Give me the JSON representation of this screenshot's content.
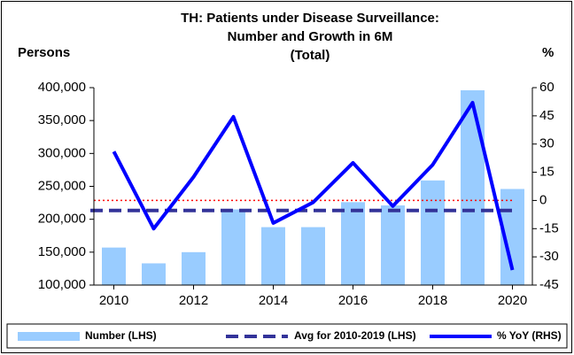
{
  "chart_data": {
    "type": "bar_line",
    "title": [
      "TH: Patients under Disease Surveillance:",
      "Number and Growth in 6M",
      "(Total)"
    ],
    "ylabel": "Persons",
    "y2label": "%",
    "x": [
      2010,
      2011,
      2012,
      2013,
      2014,
      2015,
      2016,
      2017,
      2018,
      2019,
      2020
    ],
    "xlim": [
      2009.5,
      2020.5
    ],
    "xticks": [
      2010,
      2012,
      2014,
      2016,
      2018,
      2020
    ],
    "ylim": [
      100000,
      400000
    ],
    "yticks": [
      {
        "value": 100000,
        "label": "100,000"
      },
      {
        "value": 150000,
        "label": "150,000"
      },
      {
        "value": 200000,
        "label": "200,000"
      },
      {
        "value": 250000,
        "label": "250,000"
      },
      {
        "value": 300000,
        "label": "300,000"
      },
      {
        "value": 350000,
        "label": "350,000"
      },
      {
        "value": 400000,
        "label": "400,000"
      }
    ],
    "y2lim": [
      -45,
      60
    ],
    "y2ticks": [
      60,
      45,
      30,
      15,
      0,
      -15,
      -30,
      -45
    ],
    "series": [
      {
        "name": "Number (LHS)",
        "kind": "bar",
        "color": "#99ccff",
        "values": [
          157000,
          133000,
          150000,
          215000,
          188000,
          188000,
          226000,
          221000,
          259000,
          396000,
          246000
        ]
      },
      {
        "name": "Avg for 2010-2019 (LHS)",
        "kind": "hline",
        "color": "#333399",
        "value": 213300
      },
      {
        "name": "% YoY (RHS)",
        "kind": "line",
        "axis": "y2",
        "color": "#0000ff",
        "values": [
          26,
          -15,
          12.5,
          44.5,
          -12,
          -1,
          20,
          -3,
          19,
          52,
          -37
        ]
      }
    ],
    "zero_line_color": "#ff0000"
  }
}
